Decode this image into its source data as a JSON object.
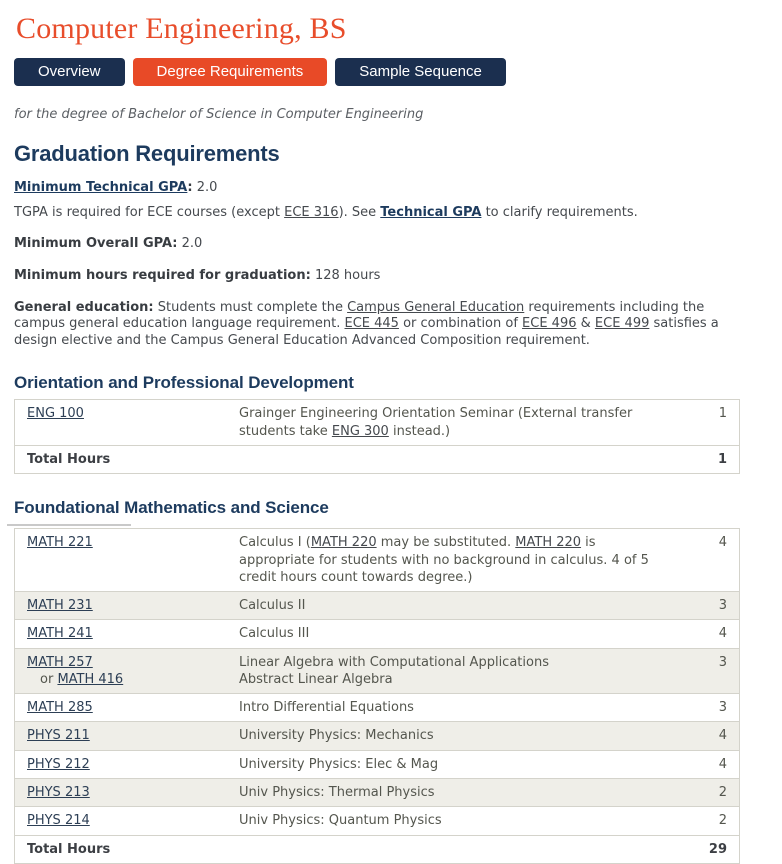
{
  "page": {
    "title": "Computer Engineering, BS",
    "subtitle": "for the degree of Bachelor of Science in Computer Engineering"
  },
  "colors": {
    "accent_orange": "#E84A27",
    "navy": "#1B2F4F",
    "heading_navy": "#1D3B5E",
    "row_stripe": "#EFEEE8",
    "table_border": "#D4D3CB"
  },
  "tabs": [
    {
      "label": "Overview",
      "active": false
    },
    {
      "label": "Degree Requirements",
      "active": true
    },
    {
      "label": "Sample Sequence",
      "active": false
    }
  ],
  "graduation": {
    "heading": "Graduation Requirements",
    "paragraphs": [
      {
        "segments": [
          {
            "t": "Minimum Technical GPA",
            "s": "boldlink"
          },
          {
            "t": ":",
            "s": "bold"
          },
          {
            "t": " 2.0",
            "s": "plain"
          }
        ]
      },
      {
        "segments": [
          {
            "t": "TGPA is required for ECE courses (except ",
            "s": "plain"
          },
          {
            "t": "ECE 316",
            "s": "link"
          },
          {
            "t": "). See ",
            "s": "plain"
          },
          {
            "t": "Technical GPA",
            "s": "boldlink"
          },
          {
            "t": " to clarify requirements.",
            "s": "plain"
          }
        ]
      },
      {
        "segments": [
          {
            "t": "Minimum Overall GPA:",
            "s": "bold"
          },
          {
            "t": " 2.0",
            "s": "plain"
          }
        ]
      },
      {
        "segments": [
          {
            "t": "Minimum hours required for graduation:",
            "s": "bold"
          },
          {
            "t": " 128 hours",
            "s": "plain"
          }
        ]
      },
      {
        "segments": [
          {
            "t": "General education:",
            "s": "bold"
          },
          {
            "t": " Students must complete the ",
            "s": "plain"
          },
          {
            "t": "Campus General Education",
            "s": "link"
          },
          {
            "t": " requirements including the campus general education language requirement. ",
            "s": "plain"
          },
          {
            "t": "ECE 445",
            "s": "link"
          },
          {
            "t": " or combination of ",
            "s": "plain"
          },
          {
            "t": "ECE 496",
            "s": "link"
          },
          {
            "t": " & ",
            "s": "plain"
          },
          {
            "t": "ECE 499",
            "s": "link"
          },
          {
            "t": " satisfies a design elective and the Campus General Education Advanced Composition requirement.",
            "s": "plain"
          }
        ]
      }
    ]
  },
  "sections": [
    {
      "heading": "Orientation and Professional Development",
      "table": {
        "rows": [
          {
            "stripe": false,
            "code_lines": [
              {
                "indent": false,
                "segs": [
                  {
                    "t": "ENG 100",
                    "s": "codelink"
                  }
                ]
              }
            ],
            "title_lines": [
              {
                "segs": [
                  {
                    "t": "Grainger Engineering Orientation Seminar (External transfer students take ",
                    "s": "plain"
                  },
                  {
                    "t": "ENG 300",
                    "s": "link"
                  },
                  {
                    "t": " instead.)",
                    "s": "plain"
                  }
                ]
              }
            ],
            "hours": "1"
          },
          {
            "total": true,
            "label": "Total Hours",
            "hours": "1"
          }
        ]
      }
    },
    {
      "heading": "Foundational Mathematics and Science",
      "table": {
        "rows": [
          {
            "stripe": false,
            "code_lines": [
              {
                "indent": false,
                "segs": [
                  {
                    "t": "MATH 221",
                    "s": "codelink"
                  }
                ]
              }
            ],
            "title_lines": [
              {
                "segs": [
                  {
                    "t": "Calculus I (",
                    "s": "plain"
                  },
                  {
                    "t": "MATH 220",
                    "s": "link"
                  },
                  {
                    "t": " may be substituted. ",
                    "s": "plain"
                  },
                  {
                    "t": "MATH 220",
                    "s": "link"
                  },
                  {
                    "t": " is appropriate for students with no background in calculus. 4 of 5 credit hours count towards degree.)",
                    "s": "plain"
                  }
                ]
              }
            ],
            "hours": "4"
          },
          {
            "stripe": true,
            "code_lines": [
              {
                "indent": false,
                "segs": [
                  {
                    "t": "MATH 231",
                    "s": "codelink"
                  }
                ]
              }
            ],
            "title_lines": [
              {
                "segs": [
                  {
                    "t": "Calculus II",
                    "s": "plain"
                  }
                ]
              }
            ],
            "hours": "3"
          },
          {
            "stripe": false,
            "code_lines": [
              {
                "indent": false,
                "segs": [
                  {
                    "t": "MATH 241",
                    "s": "codelink"
                  }
                ]
              }
            ],
            "title_lines": [
              {
                "segs": [
                  {
                    "t": "Calculus III",
                    "s": "plain"
                  }
                ]
              }
            ],
            "hours": "4"
          },
          {
            "stripe": true,
            "code_lines": [
              {
                "indent": false,
                "segs": [
                  {
                    "t": "MATH 257",
                    "s": "codelink"
                  }
                ]
              },
              {
                "indent": true,
                "segs": [
                  {
                    "t": "or ",
                    "s": "plain"
                  },
                  {
                    "t": "MATH 416",
                    "s": "codelink"
                  }
                ]
              }
            ],
            "title_lines": [
              {
                "segs": [
                  {
                    "t": "Linear Algebra with Computational Applications",
                    "s": "plain"
                  }
                ]
              },
              {
                "segs": [
                  {
                    "t": "Abstract Linear Algebra",
                    "s": "plain"
                  }
                ]
              }
            ],
            "hours": "3"
          },
          {
            "stripe": false,
            "code_lines": [
              {
                "indent": false,
                "segs": [
                  {
                    "t": "MATH 285",
                    "s": "codelink"
                  }
                ]
              }
            ],
            "title_lines": [
              {
                "segs": [
                  {
                    "t": "Intro Differential Equations",
                    "s": "plain"
                  }
                ]
              }
            ],
            "hours": "3"
          },
          {
            "stripe": true,
            "code_lines": [
              {
                "indent": false,
                "segs": [
                  {
                    "t": "PHYS 211",
                    "s": "codelink"
                  }
                ]
              }
            ],
            "title_lines": [
              {
                "segs": [
                  {
                    "t": "University Physics: Mechanics",
                    "s": "plain"
                  }
                ]
              }
            ],
            "hours": "4"
          },
          {
            "stripe": false,
            "code_lines": [
              {
                "indent": false,
                "segs": [
                  {
                    "t": "PHYS 212",
                    "s": "codelink"
                  }
                ]
              }
            ],
            "title_lines": [
              {
                "segs": [
                  {
                    "t": "University Physics: Elec & Mag",
                    "s": "plain"
                  }
                ]
              }
            ],
            "hours": "4"
          },
          {
            "stripe": true,
            "code_lines": [
              {
                "indent": false,
                "segs": [
                  {
                    "t": "PHYS 213",
                    "s": "codelink"
                  }
                ]
              }
            ],
            "title_lines": [
              {
                "segs": [
                  {
                    "t": "Univ Physics: Thermal Physics",
                    "s": "plain"
                  }
                ]
              }
            ],
            "hours": "2"
          },
          {
            "stripe": false,
            "code_lines": [
              {
                "indent": false,
                "segs": [
                  {
                    "t": "PHYS 214",
                    "s": "codelink"
                  }
                ]
              }
            ],
            "title_lines": [
              {
                "segs": [
                  {
                    "t": "Univ Physics: Quantum Physics",
                    "s": "plain"
                  }
                ]
              }
            ],
            "hours": "2"
          },
          {
            "total": true,
            "label": "Total Hours",
            "hours": "29"
          }
        ]
      }
    }
  ]
}
